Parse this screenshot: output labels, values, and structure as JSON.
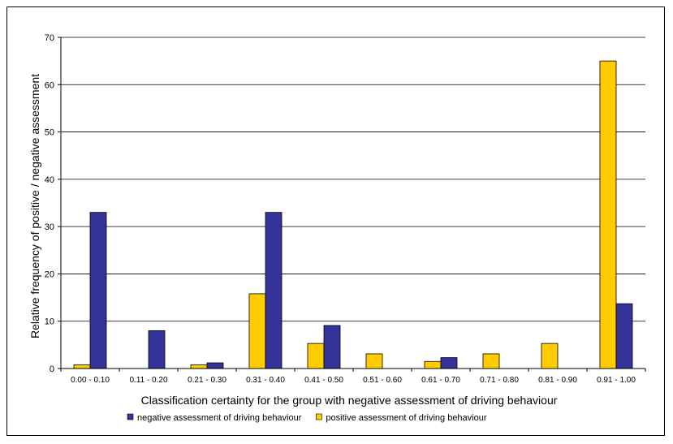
{
  "chart_data": {
    "type": "bar",
    "title": "",
    "xlabel": "Classification certainty for the group with negative assessment of driving behaviour",
    "ylabel": "Relative frequency of positive / negative assessment",
    "ylim": [
      0,
      70
    ],
    "yticks": [
      0,
      10,
      20,
      30,
      40,
      50,
      60,
      70
    ],
    "grid": true,
    "legend_position": "bottom",
    "categories": [
      "0.00 - 0.10",
      "0.11 - 0.20",
      "0.21 - 0.30",
      "0.31 - 0.40",
      "0.41 - 0.50",
      "0.51 - 0.60",
      "0.61 - 0.70",
      "0.71 - 0.80",
      "0.81 - 0.90",
      "0.91 - 1.00"
    ],
    "series": [
      {
        "name": "positive assessment of driving behaviour",
        "color": "#FFCC00",
        "values": [
          0.8,
          0,
          0.8,
          15.8,
          5.3,
          3.1,
          1.5,
          3.1,
          5.3,
          65
        ]
      },
      {
        "name": "negative assessment of driving behaviour",
        "color": "#333399",
        "values": [
          33,
          8,
          1.2,
          33,
          9.1,
          0,
          2.3,
          0,
          0,
          13.7
        ]
      }
    ],
    "legend_order": [
      1,
      0
    ]
  }
}
